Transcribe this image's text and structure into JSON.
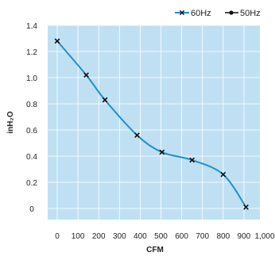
{
  "chart_data": {
    "type": "line",
    "xlabel": "CFM",
    "ylabel": "inH₂O",
    "xlim": [
      0,
      1000
    ],
    "ylim": [
      0,
      1.4
    ],
    "x_ticks": [
      0,
      100,
      200,
      300,
      400,
      500,
      600,
      700,
      800,
      900,
      1000
    ],
    "x_tick_labels": [
      "0",
      "100",
      "200",
      "300",
      "400",
      "500",
      "600",
      "700",
      "800",
      "900",
      "1,000"
    ],
    "y_ticks": [
      0,
      0.2,
      0.4,
      0.6,
      0.8,
      1.0,
      1.2,
      1.4
    ],
    "y_tick_labels": [
      "0",
      "0.2",
      "0.4",
      "0.6",
      "0.8",
      "1.0",
      "1.2",
      "1.4"
    ],
    "grid": true,
    "legend_position": "top-right",
    "colors": {
      "plot_bg": "#bfe0f3",
      "grid": "#ffffff",
      "line": "#1e8fd0",
      "marker": "#111111"
    },
    "series": [
      {
        "name": "60Hz",
        "marker": "x",
        "x": [
          0,
          140,
          230,
          385,
          505,
          650,
          800,
          910
        ],
        "y": [
          1.28,
          1.02,
          0.83,
          0.56,
          0.43,
          0.37,
          0.26,
          0.01
        ]
      },
      {
        "name": "50Hz",
        "marker": "dot",
        "x": [],
        "y": []
      }
    ]
  }
}
